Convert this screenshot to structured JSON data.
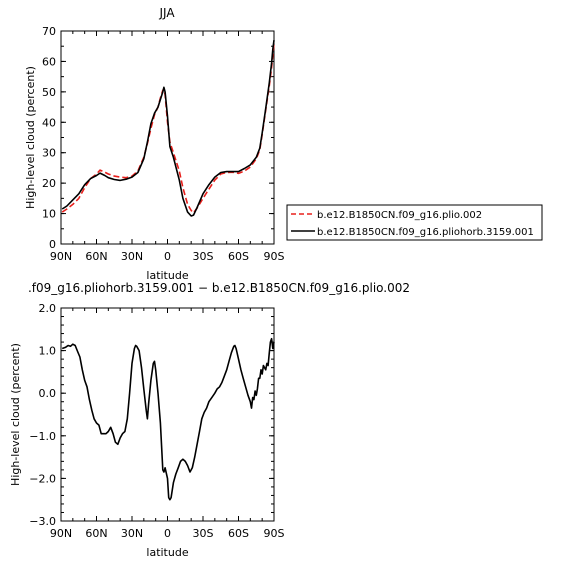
{
  "chart_data": [
    {
      "type": "line",
      "title": "JJA",
      "xlabel": "latitude",
      "ylabel": "High-level cloud (percent)",
      "xlim": [
        90,
        -90
      ],
      "ylim": [
        0,
        70
      ],
      "xticks": [
        90,
        60,
        30,
        0,
        -30,
        -60,
        -90
      ],
      "xtick_labels": [
        "90N",
        "60N",
        "30N",
        "0",
        "30S",
        "60S",
        "90S"
      ],
      "yticks": [
        0,
        10,
        20,
        30,
        40,
        50,
        60,
        70
      ],
      "ytick_labels": [
        "0",
        "10",
        "20",
        "30",
        "40",
        "50",
        "60",
        "70"
      ],
      "legend_position": "right",
      "series": [
        {
          "name": "b.e12.B1850CN.f09_g16.plio.002",
          "color": "#e8201c",
          "dash": "dashed",
          "points": [
            [
              89,
              10.5
            ],
            [
              85,
              11.5
            ],
            [
              80,
              13.0
            ],
            [
              75,
              15.0
            ],
            [
              70,
              18.5
            ],
            [
              65,
              21.5
            ],
            [
              60,
              23.0
            ],
            [
              57,
              24.3
            ],
            [
              53,
              23.6
            ],
            [
              50,
              23.0
            ],
            [
              45,
              22.3
            ],
            [
              40,
              22.0
            ],
            [
              35,
              21.8
            ],
            [
              30,
              22.3
            ],
            [
              25,
              24.0
            ],
            [
              20,
              28.5
            ],
            [
              17,
              33.0
            ],
            [
              14,
              38.0
            ],
            [
              11,
              42.5
            ],
            [
              8,
              45.0
            ],
            [
              6,
              48.0
            ],
            [
              4,
              50.5
            ],
            [
              3,
              51.0
            ],
            [
              2,
              49.0
            ],
            [
              0,
              40.0
            ],
            [
              -2,
              33.5
            ],
            [
              -5,
              30.0
            ],
            [
              -10,
              24.0
            ],
            [
              -13,
              18.5
            ],
            [
              -17,
              13.0
            ],
            [
              -20,
              11.0
            ],
            [
              -22,
              10.3
            ],
            [
              -25,
              11.8
            ],
            [
              -30,
              15.0
            ],
            [
              -35,
              18.0
            ],
            [
              -40,
              21.0
            ],
            [
              -45,
              23.0
            ],
            [
              -50,
              23.5
            ],
            [
              -55,
              23.6
            ],
            [
              -60,
              23.2
            ],
            [
              -65,
              24.0
            ],
            [
              -70,
              25.3
            ],
            [
              -75,
              28.0
            ],
            [
              -78,
              31.0
            ],
            [
              -80,
              36.0
            ],
            [
              -83,
              44.0
            ],
            [
              -86,
              52.0
            ],
            [
              -88,
              58.0
            ],
            [
              -89,
              62.0
            ],
            [
              -90,
              66.0
            ]
          ]
        },
        {
          "name": "b.e12.B1850CN.f09_g16.pliohorb.3159.001",
          "color": "#000000",
          "dash": "solid",
          "points": [
            [
              89,
              11.5
            ],
            [
              85,
              12.5
            ],
            [
              80,
              14.5
            ],
            [
              75,
              16.5
            ],
            [
              70,
              19.5
            ],
            [
              65,
              21.5
            ],
            [
              60,
              22.5
            ],
            [
              57,
              23.3
            ],
            [
              53,
              22.5
            ],
            [
              50,
              21.8
            ],
            [
              45,
              21.2
            ],
            [
              40,
              20.9
            ],
            [
              35,
              21.3
            ],
            [
              30,
              22.0
            ],
            [
              25,
              23.5
            ],
            [
              20,
              28.0
            ],
            [
              17,
              33.5
            ],
            [
              14,
              39.5
            ],
            [
              11,
              43.0
            ],
            [
              8,
              45.0
            ],
            [
              6,
              47.5
            ],
            [
              4,
              50.0
            ],
            [
              3,
              51.5
            ],
            [
              2,
              50.0
            ],
            [
              0,
              42.0
            ],
            [
              -2,
              32.0
            ],
            [
              -5,
              28.5
            ],
            [
              -10,
              21.0
            ],
            [
              -13,
              15.0
            ],
            [
              -17,
              10.5
            ],
            [
              -20,
              9.2
            ],
            [
              -22,
              9.5
            ],
            [
              -25,
              12.0
            ],
            [
              -30,
              16.5
            ],
            [
              -35,
              19.5
            ],
            [
              -40,
              22.0
            ],
            [
              -45,
              23.5
            ],
            [
              -50,
              23.8
            ],
            [
              -55,
              23.8
            ],
            [
              -60,
              23.8
            ],
            [
              -65,
              24.8
            ],
            [
              -70,
              26.0
            ],
            [
              -75,
              28.5
            ],
            [
              -78,
              31.5
            ],
            [
              -80,
              36.5
            ],
            [
              -83,
              44.5
            ],
            [
              -86,
              53.0
            ],
            [
              -88,
              59.5
            ],
            [
              -89,
              64.0
            ],
            [
              -90,
              67.0
            ]
          ]
        }
      ]
    },
    {
      "type": "line",
      "title": ".f09_g16.pliohorb.3159.001 − b.e12.B1850CN.f09_g16.plio.002",
      "xlabel": "latitude",
      "ylabel": "High-level cloud (percent)",
      "xlim": [
        90,
        -90
      ],
      "ylim": [
        -3.0,
        2.0
      ],
      "xticks": [
        90,
        60,
        30,
        0,
        -30,
        -60,
        -90
      ],
      "xtick_labels": [
        "90N",
        "60N",
        "30N",
        "0",
        "30S",
        "60S",
        "90S"
      ],
      "yticks": [
        2.0,
        1.0,
        0.0,
        -1.0,
        -2.0,
        -3.0
      ],
      "ytick_labels": [
        "2.0",
        "1.0",
        "0.0",
        "−1.0",
        "−2.0",
        "−3.0"
      ],
      "series": [
        {
          "color": "#000000",
          "dash": "solid",
          "points": [
            [
              89,
              1.05
            ],
            [
              86,
              1.08
            ],
            [
              84,
              1.12
            ],
            [
              82,
              1.1
            ],
            [
              80,
              1.15
            ],
            [
              78,
              1.12
            ],
            [
              76,
              0.98
            ],
            [
              74,
              0.85
            ],
            [
              72,
              0.55
            ],
            [
              70,
              0.3
            ],
            [
              68,
              0.15
            ],
            [
              66,
              -0.15
            ],
            [
              64,
              -0.4
            ],
            [
              62,
              -0.6
            ],
            [
              60,
              -0.7
            ],
            [
              58,
              -0.75
            ],
            [
              56,
              -0.95
            ],
            [
              54,
              -0.95
            ],
            [
              52,
              -0.95
            ],
            [
              50,
              -0.9
            ],
            [
              48,
              -0.8
            ],
            [
              46,
              -0.95
            ],
            [
              44,
              -1.15
            ],
            [
              42,
              -1.2
            ],
            [
              40,
              -1.05
            ],
            [
              38,
              -0.95
            ],
            [
              36,
              -0.9
            ],
            [
              34,
              -0.6
            ],
            [
              32,
              0.0
            ],
            [
              30,
              0.7
            ],
            [
              28,
              1.05
            ],
            [
              27,
              1.12
            ],
            [
              26,
              1.1
            ],
            [
              24,
              1.0
            ],
            [
              22,
              0.6
            ],
            [
              20,
              0.1
            ],
            [
              18,
              -0.4
            ],
            [
              17,
              -0.6
            ],
            [
              16,
              -0.25
            ],
            [
              14,
              0.3
            ],
            [
              12,
              0.7
            ],
            [
              11,
              0.75
            ],
            [
              10,
              0.55
            ],
            [
              8,
              0.0
            ],
            [
              6,
              -0.7
            ],
            [
              5,
              -1.25
            ],
            [
              4,
              -1.8
            ],
            [
              3,
              -1.85
            ],
            [
              2,
              -1.75
            ],
            [
              0,
              -2.0
            ],
            [
              -1,
              -2.45
            ],
            [
              -2,
              -2.5
            ],
            [
              -3,
              -2.45
            ],
            [
              -5,
              -2.1
            ],
            [
              -7,
              -1.9
            ],
            [
              -9,
              -1.75
            ],
            [
              -11,
              -1.6
            ],
            [
              -13,
              -1.55
            ],
            [
              -15,
              -1.6
            ],
            [
              -17,
              -1.7
            ],
            [
              -19,
              -1.85
            ],
            [
              -21,
              -1.75
            ],
            [
              -23,
              -1.5
            ],
            [
              -25,
              -1.2
            ],
            [
              -27,
              -0.9
            ],
            [
              -29,
              -0.6
            ],
            [
              -31,
              -0.45
            ],
            [
              -33,
              -0.35
            ],
            [
              -35,
              -0.2
            ],
            [
              -38,
              -0.08
            ],
            [
              -40,
              0.0
            ],
            [
              -42,
              0.1
            ],
            [
              -44,
              0.15
            ],
            [
              -46,
              0.25
            ],
            [
              -48,
              0.4
            ],
            [
              -50,
              0.55
            ],
            [
              -52,
              0.75
            ],
            [
              -54,
              0.95
            ],
            [
              -56,
              1.1
            ],
            [
              -57,
              1.12
            ],
            [
              -58,
              1.05
            ],
            [
              -60,
              0.8
            ],
            [
              -62,
              0.55
            ],
            [
              -64,
              0.35
            ],
            [
              -66,
              0.15
            ],
            [
              -68,
              -0.05
            ],
            [
              -70,
              -0.2
            ],
            [
              -71,
              -0.35
            ],
            [
              -72,
              -0.1
            ],
            [
              -73,
              -0.15
            ],
            [
              -74,
              0.05
            ],
            [
              -75,
              -0.05
            ],
            [
              -76,
              0.1
            ],
            [
              -77,
              0.35
            ],
            [
              -78,
              0.35
            ],
            [
              -79,
              0.55
            ],
            [
              -80,
              0.45
            ],
            [
              -81,
              0.65
            ],
            [
              -82,
              0.6
            ],
            [
              -83,
              0.55
            ],
            [
              -84,
              0.7
            ],
            [
              -85,
              0.65
            ],
            [
              -86,
              0.95
            ],
            [
              -87,
              1.2
            ],
            [
              -88,
              1.28
            ],
            [
              -89,
              1.05
            ],
            [
              -90,
              1.2
            ]
          ]
        }
      ]
    }
  ]
}
